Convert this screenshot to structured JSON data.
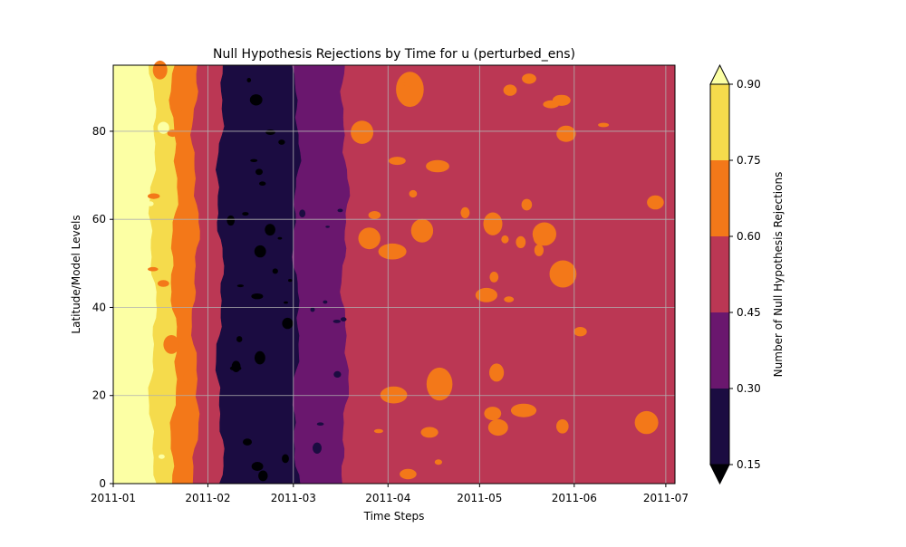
{
  "chart_data": {
    "type": "heatmap",
    "subtype": "filled-contour",
    "title": "Null Hypothesis Rejections by Time for u (perturbed_ens)",
    "xlabel": "Time Steps",
    "ylabel": "Latitude/Model Levels",
    "x_ticks": [
      "2011-01",
      "2011-02",
      "2011-03",
      "2011-04",
      "2011-05",
      "2011-06",
      "2011-07"
    ],
    "x_range": [
      "2011-01-01",
      "2011-07-04"
    ],
    "y_ticks": [
      0,
      20,
      40,
      60,
      80
    ],
    "ylim": [
      0,
      95
    ],
    "grid": true,
    "colorbar": {
      "label": "Number of Null Hypothesis Rejections",
      "levels": [
        0.15,
        0.3,
        0.45,
        0.6,
        0.75,
        0.9
      ],
      "tick_labels": [
        "0.15",
        "0.30",
        "0.45",
        "0.60",
        "0.75",
        "0.90"
      ],
      "colors": [
        "#1b0c41",
        "#6a176e",
        "#bb3754",
        "#f37819",
        "#f5db4c"
      ],
      "under_color": "#000004",
      "over_color": "#fcffa4",
      "extend": "both"
    },
    "bands_by_date": [
      {
        "from": "2011-01-01",
        "to": "2011-01-14",
        "range": "0.90+"
      },
      {
        "from": "2011-01-14",
        "to": "2011-01-21",
        "range": "0.75-0.90"
      },
      {
        "from": "2011-01-21",
        "to": "2011-01-28",
        "range": "0.60-0.75"
      },
      {
        "from": "2011-01-28",
        "to": "2011-02-05",
        "range": "0.45-0.60"
      },
      {
        "from": "2011-02-05",
        "to": "2011-03-02",
        "range": "0.15-0.30"
      },
      {
        "from": "2011-03-02",
        "to": "2011-03-18",
        "range": "0.30-0.45"
      },
      {
        "from": "2011-03-18",
        "to": "2011-07-04",
        "range": "0.45-0.60"
      }
    ]
  }
}
